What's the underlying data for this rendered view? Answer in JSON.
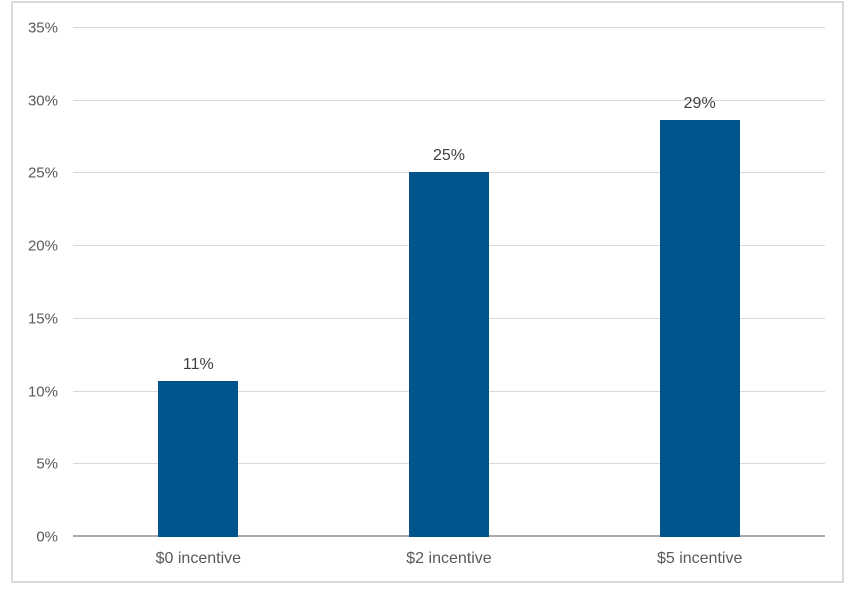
{
  "chart_data": {
    "type": "bar",
    "title": "",
    "xlabel": "",
    "ylabel": "",
    "categories": [
      "$0 incentive",
      "$2 incentive",
      "$5 incentive"
    ],
    "values": [
      11,
      25,
      29
    ],
    "data_labels": [
      "11%",
      "25%",
      "29%"
    ],
    "bar_render_values": [
      10.7,
      25.1,
      28.7
    ],
    "y_ticks": [
      {
        "value": 0,
        "label": "0%"
      },
      {
        "value": 5,
        "label": "5%"
      },
      {
        "value": 10,
        "label": "10%"
      },
      {
        "value": 15,
        "label": "15%"
      },
      {
        "value": 20,
        "label": "20%"
      },
      {
        "value": 25,
        "label": "25%"
      },
      {
        "value": 30,
        "label": "30%"
      },
      {
        "value": 35,
        "label": "35%"
      }
    ],
    "ylim": [
      0,
      35
    ],
    "grid": true,
    "legend": false,
    "colors": {
      "bar": "#02548C",
      "gridline": "#D9D9D9",
      "axis_line": "#ABABAB",
      "tick_label": "#595959",
      "category_label": "#595959",
      "data_label": "#404040",
      "frame_border": "#D9D9D9",
      "background": "#FFFFFF"
    }
  }
}
